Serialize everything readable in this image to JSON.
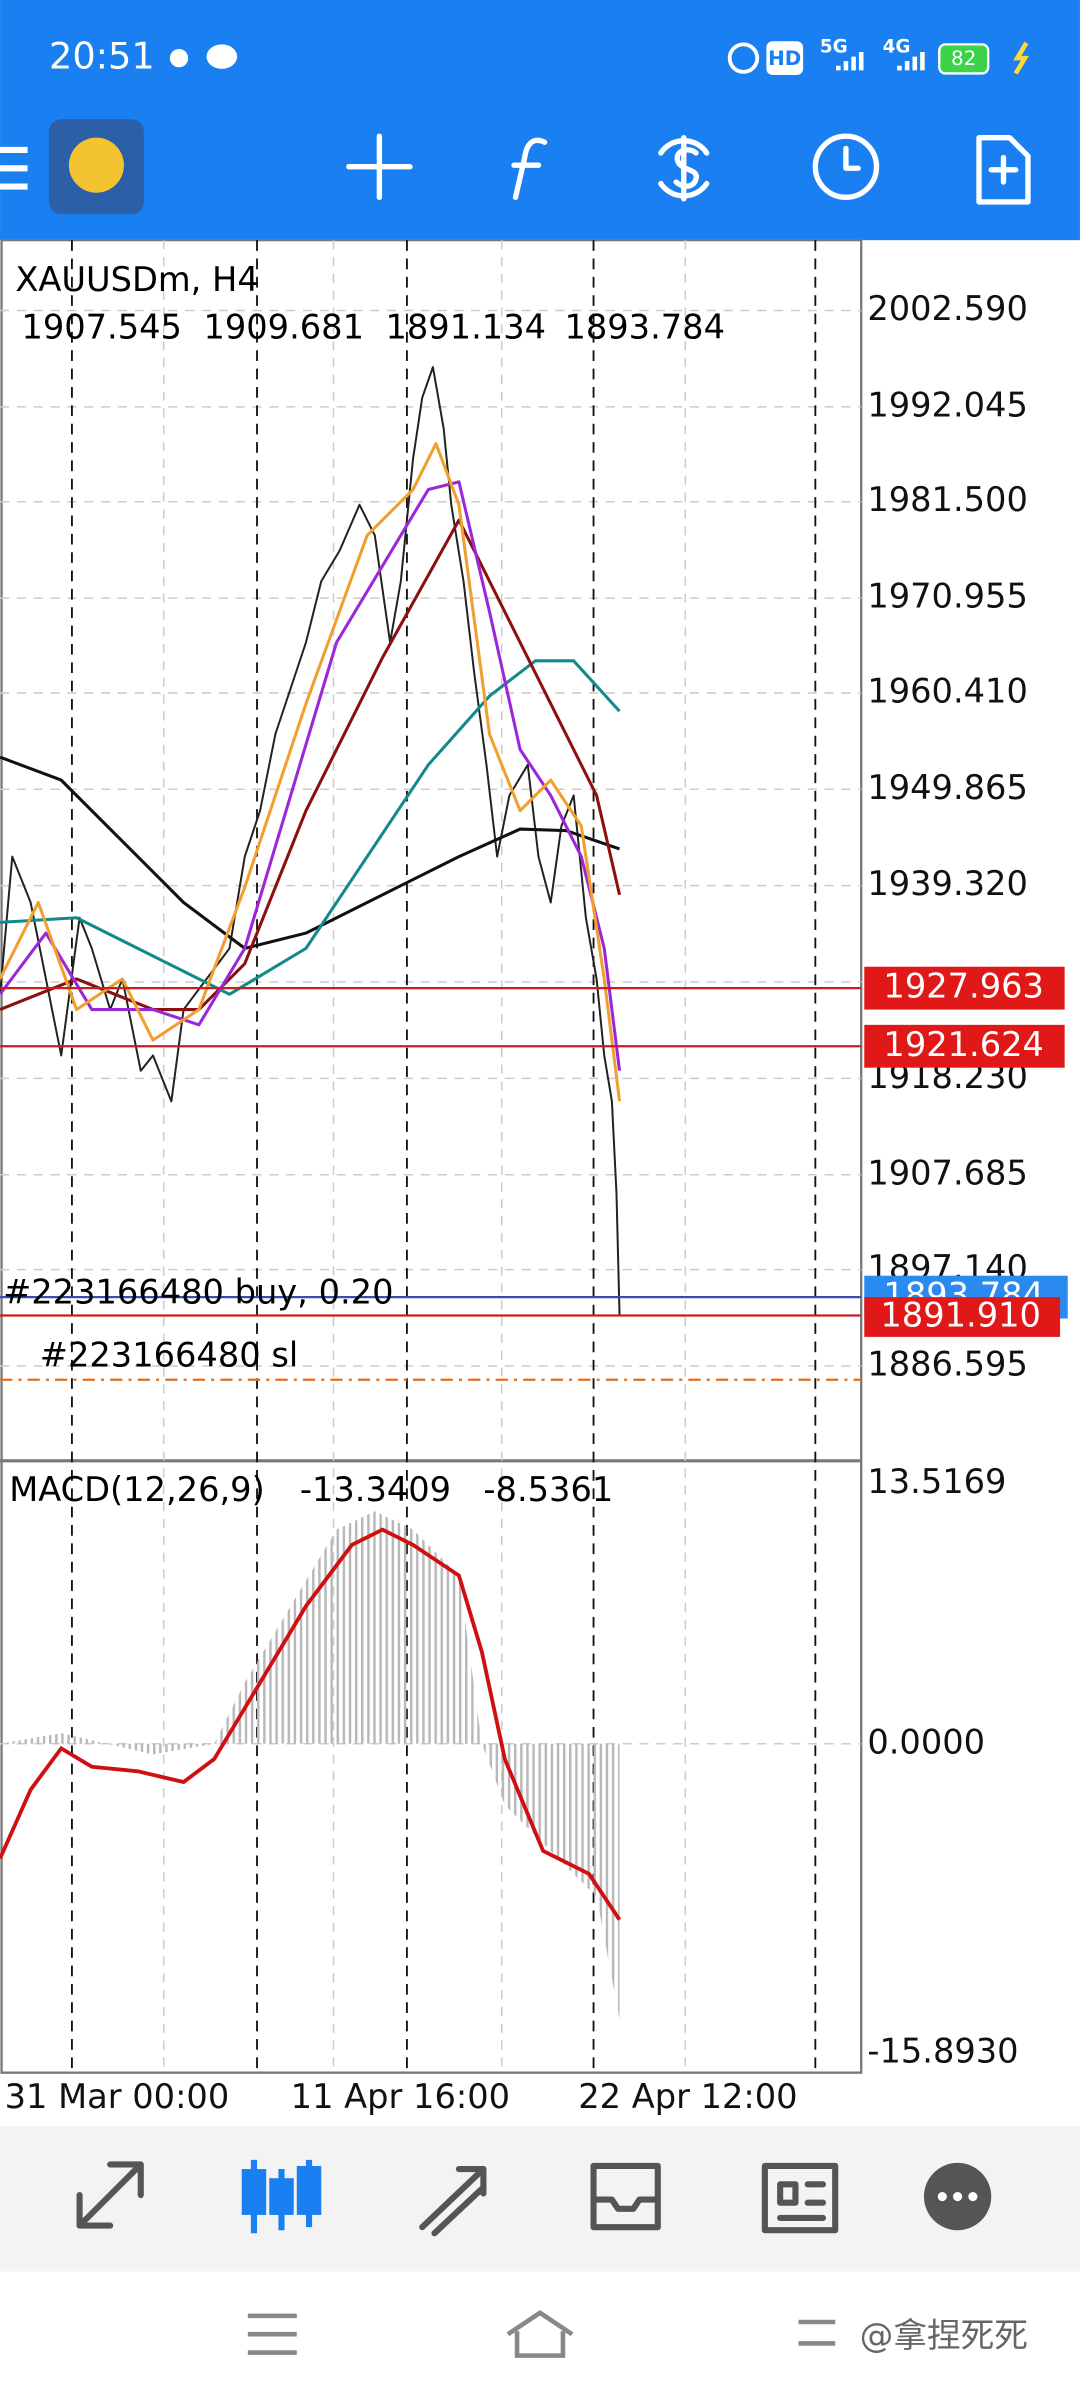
{
  "status_bar": {
    "time": "20:51",
    "hd": "HD",
    "network_1": "5G",
    "network_2": "4G",
    "battery": "82"
  },
  "chart": {
    "symbol": "XAUUSDm, H4",
    "ohlc": [
      "1907.545",
      "1909.681",
      "1891.134",
      "1893.784"
    ],
    "price_scale": [
      "2002.590",
      "1992.045",
      "1981.500",
      "1970.955",
      "1960.410",
      "1949.865",
      "1939.320",
      "1918.230",
      "1907.685",
      "1897.140",
      "1886.595"
    ],
    "price_lines": [
      "1927.963",
      "1921.624",
      "1893.784",
      "1891.910"
    ],
    "orders": [
      "#223166480  buy,  0.20",
      "#223166480  sl"
    ],
    "indicator": {
      "name": "MACD(12,26,9)",
      "values": [
        "-13.3409",
        "-8.5361"
      ],
      "scale": [
        "13.5169",
        "0.0000",
        "-15.8930"
      ]
    },
    "time_axis": [
      "31 Mar 00:00",
      "11 Apr 16:00",
      "22 Apr 12:00"
    ]
  },
  "watermark": "@拿捏死死"
}
